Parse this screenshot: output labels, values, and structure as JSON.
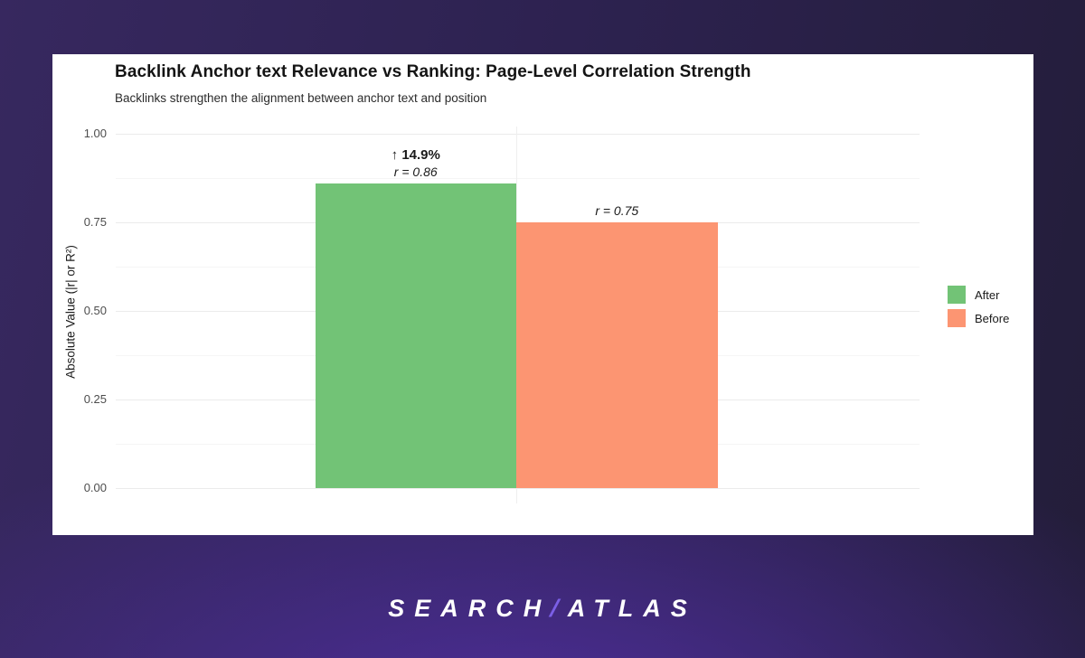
{
  "brand": {
    "logo_left": "SEARCH",
    "slash": "/",
    "logo_right": "ATLAS",
    "slash_color": "#7b5fe6",
    "text_color": "#ffffff"
  },
  "chart_data": {
    "type": "bar",
    "title": "Backlink Anchor text Relevance vs Ranking: Page-Level Correlation Strength",
    "subtitle": "Backlinks strengthen the alignment between anchor text and position",
    "xlabel": "",
    "ylabel": "Absolute Value (|r| or R²)",
    "ylim": [
      0,
      1.0
    ],
    "yticks": [
      0,
      0.25,
      0.5,
      0.75,
      1.0
    ],
    "ytick_labels": [
      "0.00",
      "0.25",
      "0.50",
      "0.75",
      "1.00"
    ],
    "minor_gridlines": [
      0.125,
      0.375,
      0.625,
      0.875
    ],
    "grid": true,
    "legend_position": "right",
    "categories": [
      ""
    ],
    "series": [
      {
        "name": "After",
        "color": "#72c376",
        "value": 0.86,
        "delta_label": "↑ 14.9%",
        "r_label": "r = 0.86"
      },
      {
        "name": "Before",
        "color": "#fc9572",
        "value": 0.75,
        "delta_label": "",
        "r_label": "r = 0.75"
      }
    ]
  }
}
